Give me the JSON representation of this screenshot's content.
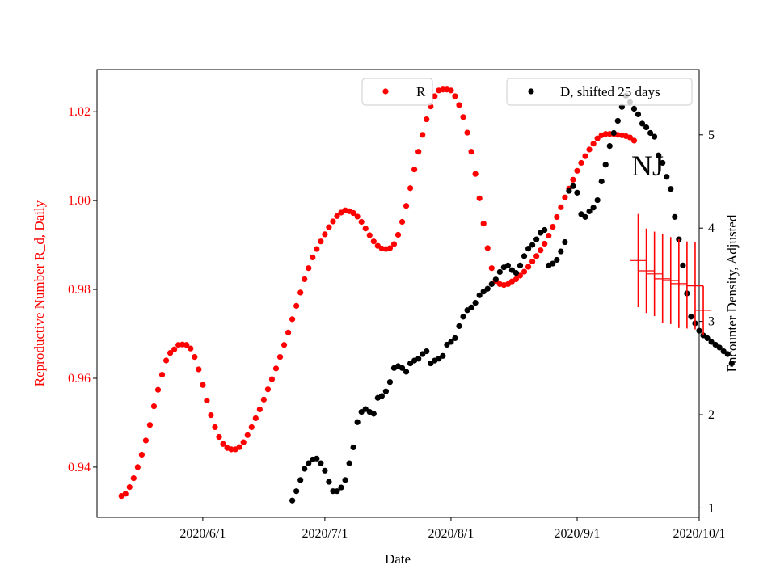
{
  "chart_data": {
    "type": "scatter",
    "xlabel": "Date",
    "ylabel_left": "Reproductive Number R_d, Daily",
    "ylabel_right": "Encounter Density, Adjusted",
    "annotation": "NJ",
    "x_ticks": [
      "2020/6/1",
      "2020/7/1",
      "2020/8/1",
      "2020/9/1",
      "2020/10/1"
    ],
    "y_left_ticks": [
      "0.94",
      "0.96",
      "0.98",
      "1.00",
      "1.02"
    ],
    "y_right_ticks": [
      "1",
      "2",
      "3",
      "4",
      "5"
    ],
    "xlim": [
      "2020-05-06",
      "2020-10-01"
    ],
    "ylim_left": [
      0.9287,
      1.0295
    ],
    "ylim_right": [
      0.9,
      5.7
    ],
    "left_axis_color": "#ff0000",
    "legend": [
      {
        "label": "R",
        "color": "#ff0000",
        "placement": "top-center"
      },
      {
        "label": "D, shifted 25 days",
        "color": "#000000",
        "placement": "top-right"
      }
    ],
    "series": [
      {
        "name": "R",
        "axis": "left",
        "color": "#ff0000",
        "start_date": "2020-05-12",
        "step_days": 1,
        "values": [
          0.9335,
          0.934,
          0.9355,
          0.9375,
          0.94,
          0.9428,
          0.946,
          0.9495,
          0.9537,
          0.9574,
          0.9608,
          0.964,
          0.9657,
          0.9665,
          0.9675,
          0.9676,
          0.9675,
          0.9667,
          0.9648,
          0.962,
          0.9585,
          0.955,
          0.9517,
          0.949,
          0.9468,
          0.9452,
          0.9443,
          0.944,
          0.944,
          0.9445,
          0.9456,
          0.9472,
          0.949,
          0.951,
          0.953,
          0.9552,
          0.9575,
          0.9598,
          0.9622,
          0.9648,
          0.9675,
          0.9703,
          0.9733,
          0.9763,
          0.9793,
          0.9823,
          0.9848,
          0.9872,
          0.9891,
          0.9908,
          0.9924,
          0.994,
          0.9953,
          0.9965,
          0.9973,
          0.9978,
          0.9976,
          0.9972,
          0.9964,
          0.9952,
          0.9937,
          0.9922,
          0.9908,
          0.9898,
          0.9892,
          0.9891,
          0.9893,
          0.9902,
          0.9923,
          0.9952,
          0.9988,
          1.0028,
          1.007,
          1.011,
          1.0148,
          1.0183,
          1.0212,
          1.0235,
          1.0248,
          1.025,
          1.025,
          1.0248,
          1.0235,
          1.0215,
          1.0188,
          1.0153,
          1.011,
          1.006,
          1.0005,
          0.9948,
          0.9893,
          0.9848,
          0.9819,
          0.9812,
          0.981,
          0.9812,
          0.9818,
          0.9823,
          0.9831,
          0.984,
          0.9851,
          0.9863,
          0.9875,
          0.9888,
          0.9903,
          0.9921,
          0.9941,
          0.9963,
          0.9985,
          1.0007,
          1.0027,
          1.0047,
          1.0067,
          1.0085,
          1.01,
          1.0115,
          1.0128,
          1.014,
          1.0147,
          1.015,
          1.015,
          1.015,
          1.0148,
          1.0147,
          1.0145,
          1.0142,
          1.0135
        ]
      },
      {
        "name": "D, shifted 25 days",
        "axis": "right",
        "color": "#000000",
        "points": [
          [
            "2020-06-23",
            1.08
          ],
          [
            "2020-06-24",
            1.18
          ],
          [
            "2020-06-25",
            1.3
          ],
          [
            "2020-06-26",
            1.42
          ],
          [
            "2020-06-27",
            1.48
          ],
          [
            "2020-06-28",
            1.52
          ],
          [
            "2020-06-29",
            1.53
          ],
          [
            "2020-06-30",
            1.48
          ],
          [
            "2020-07-01",
            1.4
          ],
          [
            "2020-07-02",
            1.28
          ],
          [
            "2020-07-03",
            1.18
          ],
          [
            "2020-07-04",
            1.18
          ],
          [
            "2020-07-05",
            1.22
          ],
          [
            "2020-07-06",
            1.3
          ],
          [
            "2020-07-07",
            1.48
          ],
          [
            "2020-07-08",
            1.65
          ],
          [
            "2020-07-09",
            1.92
          ],
          [
            "2020-07-10",
            2.03
          ],
          [
            "2020-07-11",
            2.06
          ],
          [
            "2020-07-12",
            2.03
          ],
          [
            "2020-07-13",
            2.01
          ],
          [
            "2020-07-14",
            2.18
          ],
          [
            "2020-07-15",
            2.2
          ],
          [
            "2020-07-16",
            2.25
          ],
          [
            "2020-07-17",
            2.35
          ],
          [
            "2020-07-18",
            2.5
          ],
          [
            "2020-07-19",
            2.52
          ],
          [
            "2020-07-20",
            2.5
          ],
          [
            "2020-07-21",
            2.46
          ],
          [
            "2020-07-22",
            2.55
          ],
          [
            "2020-07-23",
            2.58
          ],
          [
            "2020-07-24",
            2.6
          ],
          [
            "2020-07-25",
            2.65
          ],
          [
            "2020-07-26",
            2.68
          ],
          [
            "2020-07-27",
            2.55
          ],
          [
            "2020-07-28",
            2.58
          ],
          [
            "2020-07-29",
            2.6
          ],
          [
            "2020-07-30",
            2.63
          ],
          [
            "2020-07-31",
            2.75
          ],
          [
            "2020-08-01",
            2.78
          ],
          [
            "2020-08-02",
            2.82
          ],
          [
            "2020-08-03",
            2.95
          ],
          [
            "2020-08-04",
            3.05
          ],
          [
            "2020-08-05",
            3.12
          ],
          [
            "2020-08-06",
            3.15
          ],
          [
            "2020-08-07",
            3.2
          ],
          [
            "2020-08-08",
            3.28
          ],
          [
            "2020-08-09",
            3.32
          ],
          [
            "2020-08-10",
            3.35
          ],
          [
            "2020-08-11",
            3.4
          ],
          [
            "2020-08-12",
            3.45
          ],
          [
            "2020-08-13",
            3.53
          ],
          [
            "2020-08-14",
            3.58
          ],
          [
            "2020-08-15",
            3.6
          ],
          [
            "2020-08-16",
            3.55
          ],
          [
            "2020-08-17",
            3.52
          ],
          [
            "2020-08-18",
            3.6
          ],
          [
            "2020-08-19",
            3.7
          ],
          [
            "2020-08-20",
            3.78
          ],
          [
            "2020-08-21",
            3.82
          ],
          [
            "2020-08-22",
            3.88
          ],
          [
            "2020-08-23",
            3.95
          ],
          [
            "2020-08-24",
            3.98
          ],
          [
            "2020-08-25",
            3.6
          ],
          [
            "2020-08-26",
            3.62
          ],
          [
            "2020-08-27",
            3.66
          ],
          [
            "2020-08-28",
            3.75
          ],
          [
            "2020-08-29",
            3.85
          ],
          [
            "2020-08-30",
            4.4
          ],
          [
            "2020-08-31",
            4.45
          ],
          [
            "2020-09-01",
            4.38
          ],
          [
            "2020-09-02",
            4.15
          ],
          [
            "2020-09-03",
            4.12
          ],
          [
            "2020-09-04",
            4.18
          ],
          [
            "2020-09-05",
            4.22
          ],
          [
            "2020-09-06",
            4.3
          ],
          [
            "2020-09-07",
            4.5
          ],
          [
            "2020-09-08",
            4.68
          ],
          [
            "2020-09-09",
            4.88
          ],
          [
            "2020-09-10",
            5.02
          ],
          [
            "2020-09-11",
            5.15
          ],
          [
            "2020-09-12",
            5.3
          ],
          [
            "2020-09-13",
            5.42
          ],
          [
            "2020-09-14",
            5.35
          ],
          [
            "2020-09-15",
            5.28
          ],
          [
            "2020-09-16",
            5.22
          ],
          [
            "2020-09-17",
            5.12
          ],
          [
            "2020-09-18",
            5.08
          ],
          [
            "2020-09-19",
            5.02
          ],
          [
            "2020-09-20",
            4.98
          ],
          [
            "2020-09-21",
            4.78
          ],
          [
            "2020-09-22",
            4.7
          ],
          [
            "2020-09-23",
            4.55
          ],
          [
            "2020-09-24",
            4.42
          ],
          [
            "2020-09-25",
            4.12
          ],
          [
            "2020-09-26",
            3.88
          ],
          [
            "2020-09-27",
            3.6
          ],
          [
            "2020-09-28",
            3.3
          ],
          [
            "2020-09-29",
            3.05
          ],
          [
            "2020-09-30",
            2.98
          ],
          [
            "2020-10-01",
            2.9
          ],
          [
            "2020-10-02",
            2.85
          ],
          [
            "2020-10-03",
            2.82
          ],
          [
            "2020-10-04",
            2.78
          ],
          [
            "2020-10-05",
            2.75
          ],
          [
            "2020-10-06",
            2.72
          ],
          [
            "2020-10-07",
            2.68
          ],
          [
            "2020-10-08",
            2.65
          ],
          [
            "2020-10-09",
            2.55
          ]
        ]
      },
      {
        "name": "",
        "axis": "left",
        "color": "#ff0000",
        "type": "errorbar",
        "points": [
          [
            "2020-09-16",
            0.9865,
            0.0105,
            2
          ],
          [
            "2020-09-18",
            0.9842,
            0.0095,
            2
          ],
          [
            "2020-09-20",
            0.9835,
            0.0095,
            2
          ],
          [
            "2020-09-22",
            0.9824,
            0.01,
            2
          ],
          [
            "2020-09-24",
            0.982,
            0.0098,
            2
          ],
          [
            "2020-09-26",
            0.9813,
            0.01,
            2
          ],
          [
            "2020-09-28",
            0.981,
            0.0098,
            2
          ],
          [
            "2020-09-30",
            0.9808,
            0.0098,
            2
          ],
          [
            "2020-10-02",
            0.9753,
            0.0055,
            2
          ]
        ]
      }
    ]
  }
}
